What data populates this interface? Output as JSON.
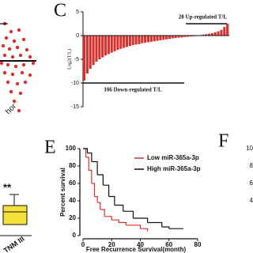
{
  "chart_data": [
    {
      "type": "bar",
      "panel_label": "C",
      "y_label": "Log2(T/L)",
      "values": [
        -9.5,
        -8,
        -7,
        -6.2,
        -5.5,
        -5,
        -4.6,
        -4.2,
        -3.9,
        -3.6,
        -3.3,
        -3,
        -2.8,
        -2.6,
        -2.4,
        -2.2,
        -2,
        -1.9,
        -1.8,
        -1.6,
        -1.5,
        -1.4,
        -1.3,
        -1.2,
        -1.1,
        -1,
        -0.9,
        -0.8,
        -0.7,
        -0.6,
        -0.5,
        -0.45,
        -0.4,
        -0.3,
        -0.25,
        -0.2,
        -0.15,
        -0.1,
        0.1,
        0.2,
        0.3,
        0.4,
        0.5,
        0.7,
        0.9,
        1.2,
        1.8,
        2.5
      ],
      "color": "#d9302e",
      "ylim": [
        -15,
        5
      ],
      "yticks": [
        5,
        0,
        -5,
        -10,
        -15
      ],
      "annotations": [
        "28 Up-regulated T/L",
        "106 Down-regulated T/L"
      ]
    },
    {
      "type": "line",
      "panel_label": "E",
      "x_label": "Free Recurrence Survival(month)",
      "y_label": "Percent survival",
      "step": true,
      "xlim": [
        0,
        80
      ],
      "xticks": [
        0,
        20,
        40,
        60,
        80
      ],
      "ylim": [
        0,
        100
      ],
      "yticks": [
        0,
        20,
        40,
        60,
        80,
        100
      ],
      "series": [
        {
          "name": "Low miR-365a-3p",
          "color": "#d9302e",
          "x": [
            0,
            2,
            4,
            6,
            8,
            10,
            12,
            15,
            20,
            25,
            30,
            40,
            45
          ],
          "values": [
            100,
            90,
            75,
            60,
            45,
            38,
            30,
            22,
            18,
            15,
            12,
            8,
            5
          ]
        },
        {
          "name": "High miR-365a-3p",
          "color": "#111111",
          "x": [
            0,
            3,
            6,
            10,
            14,
            18,
            22,
            28,
            35,
            45,
            55,
            60,
            70
          ],
          "values": [
            100,
            95,
            85,
            70,
            58,
            45,
            35,
            28,
            20,
            15,
            10,
            8,
            8
          ]
        }
      ]
    }
  ],
  "fragments": {
    "scatter_axis_label": "hor",
    "box_significance": "**",
    "box_category": "TNM III",
    "panel_f_label": "F",
    "panel_f_ticks": [
      "10",
      "8",
      "6",
      "4"
    ]
  }
}
